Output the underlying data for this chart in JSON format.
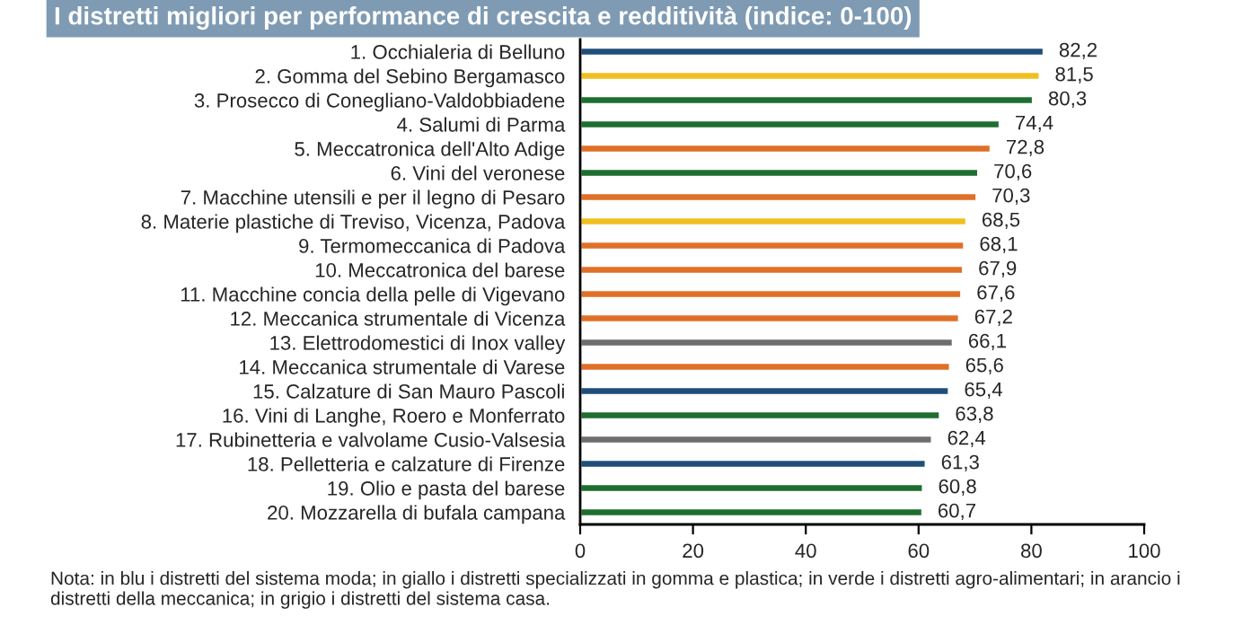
{
  "chart_data": {
    "type": "bar",
    "orientation": "horizontal",
    "title": "I distretti migliori per performance di crescita e redditività (indice: 0-100)",
    "categories": [
      "1. Occhialeria di Belluno",
      "2. Gomma del Sebino Bergamasco",
      "3. Prosecco di Conegliano-Valdobbiadene",
      "4. Salumi di Parma",
      "5. Meccatronica dell'Alto Adige",
      "6. Vini del veronese",
      "7. Macchine utensili e per il legno di Pesaro",
      "8. Materie plastiche di Treviso, Vicenza, Padova",
      "9. Termomeccanica di Padova",
      "10. Meccatronica del barese",
      "11. Macchine concia della pelle di Vigevano",
      "12. Meccanica strumentale di Vicenza",
      "13. Elettrodomestici di Inox valley",
      "14. Meccanica strumentale di Varese",
      "15. Calzature di San Mauro Pascoli",
      "16. Vini di Langhe, Roero e Monferrato",
      "17. Rubinetteria e valvolame Cusio-Valsesia",
      "18. Pelletteria e calzature di Firenze",
      "19. Olio e pasta del barese",
      "20. Mozzarella di bufala campana"
    ],
    "values": [
      82.2,
      81.5,
      80.3,
      74.4,
      72.8,
      70.6,
      70.3,
      68.5,
      68.1,
      67.9,
      67.6,
      67.2,
      66.1,
      65.6,
      65.4,
      63.8,
      62.4,
      61.3,
      60.8,
      60.7
    ],
    "value_labels": [
      "82,2",
      "81,5",
      "80,3",
      "74,4",
      "72,8",
      "70,6",
      "70,3",
      "68,5",
      "68,1",
      "67,9",
      "67,6",
      "67,2",
      "66,1",
      "65,6",
      "65,4",
      "63,8",
      "62,4",
      "61,3",
      "60,8",
      "60,7"
    ],
    "colors": [
      "#1f4e79",
      "#f0c020",
      "#1e6e30",
      "#1e6e30",
      "#e07028",
      "#1e6e30",
      "#e07028",
      "#f0c020",
      "#e07028",
      "#e07028",
      "#e07028",
      "#e07028",
      "#6e6e6e",
      "#e07028",
      "#1f4e79",
      "#1e6e30",
      "#6e6e6e",
      "#1f4e79",
      "#1e6e30",
      "#1e6e30"
    ],
    "xlim": [
      0,
      100
    ],
    "xticks": [
      0,
      20,
      40,
      60,
      80,
      100
    ],
    "grid": false,
    "legend": false,
    "annotations": [
      "Nota: in blu i distretti del sistema moda; in giallo i distretti specializzati in gomma e plastica; in verde i distretti agro-alimentari; in arancio i distretti della meccanica; in grigio i distretti del sistema casa."
    ]
  }
}
